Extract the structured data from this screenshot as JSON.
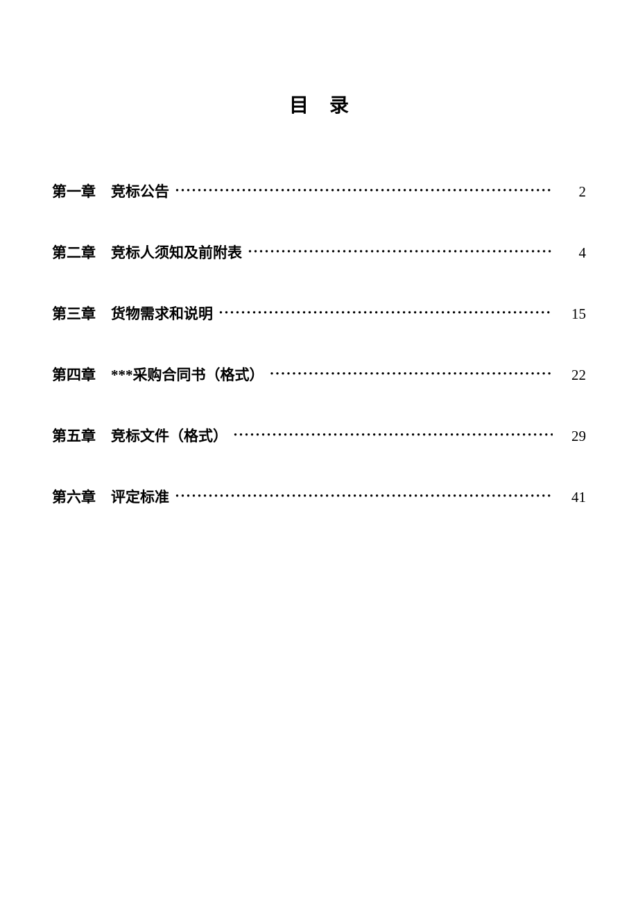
{
  "document": {
    "title": "目录",
    "background_color": "#ffffff",
    "text_color": "#000000",
    "title_fontsize": 28,
    "entry_fontsize": 21,
    "entry_gap": 58,
    "font_family": "SimSun",
    "entries": [
      {
        "chapter": "第一章",
        "title": "竞标公告",
        "page": "2"
      },
      {
        "chapter": "第二章",
        "title": "竞标人须知及前附表",
        "page": "4"
      },
      {
        "chapter": "第三章",
        "title": "货物需求和说明",
        "page": "15"
      },
      {
        "chapter": "第四章",
        "title": "***采购合同书（格式）",
        "page": "22"
      },
      {
        "chapter": "第五章",
        "title": "竞标文件（格式）",
        "page": "29"
      },
      {
        "chapter": "第六章",
        "title": "评定标准",
        "page": "41"
      }
    ],
    "dot_leader": "·"
  }
}
